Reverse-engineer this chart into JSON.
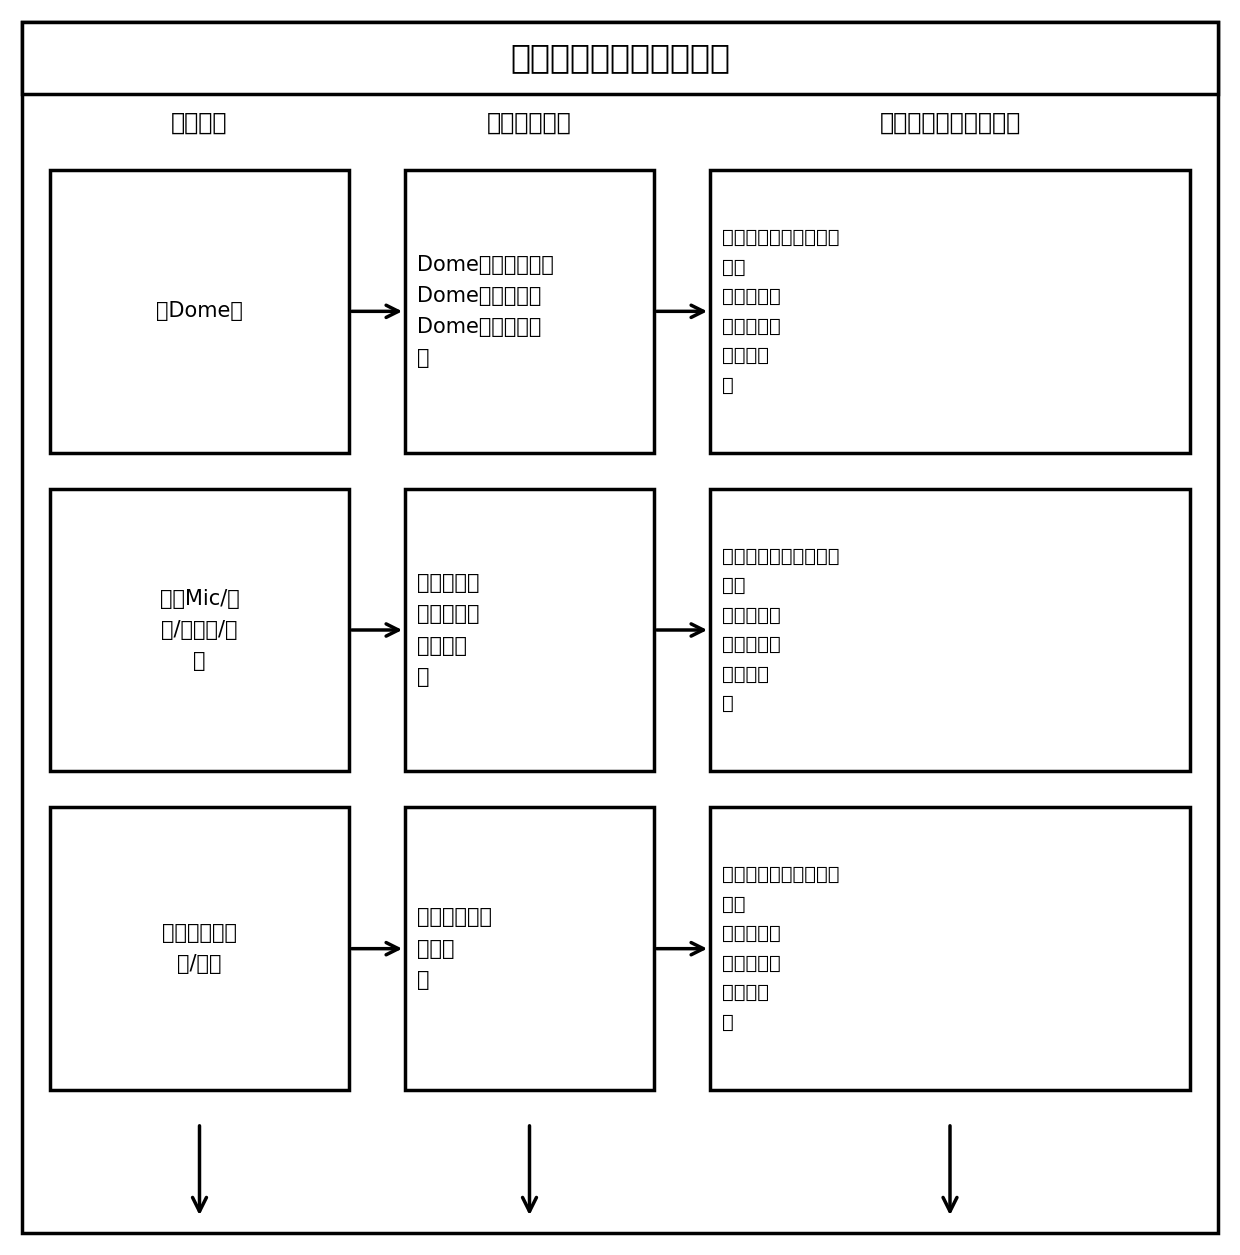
{
  "title": "旧款手机的装配过程数据",
  "col_headers": [
    "装配工艺",
    "装配要求参数",
    "所需要的装配参数指标"
  ],
  "rows": [
    {
      "col1_text": "贴Dome片",
      "col2_text": "Dome片形状信息、\nDome片的个数、\nDome片的位置、\n等",
      "col3_text": "对应的工序的参数指标\n如：\n所需时间、\n所需成本、\n返修率、\n等"
    },
    {
      "col1_text": "焊接Mic/叭\n筒/扬声器/马\n达",
      "col2_text": "焊接点个数\n焊接的方式\n焊接精度\n等",
      "col3_text": "对应的工序的参数指标\n如：\n所需时间、\n所需成本、\n返修率、\n等"
    },
    {
      "col1_text": "装天线支架组\n件/螺钉",
      "col2_text": "组装的位置、\n个数、\n等",
      "col3_text": "对应的工序的参数指标\n如：\n所需时间、\n所需成本、\n返修率、\n等"
    }
  ],
  "outer_box_color": "#000000",
  "inner_box_color": "#000000",
  "bg_color": "#ffffff",
  "text_color": "#000000",
  "title_fontsize": 24,
  "header_fontsize": 17,
  "body_fontsize": 15,
  "body_fontsize_sm": 14
}
